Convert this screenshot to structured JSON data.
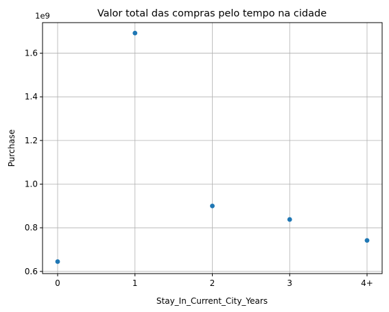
{
  "chart_data": {
    "type": "scatter",
    "title": "Valor total das compras pelo tempo na cidade",
    "xlabel": "Stay_In_Current_City_Years",
    "ylabel": "Purchase",
    "y_offset_label": "1e9",
    "categories": [
      "0",
      "1",
      "2",
      "3",
      "4+"
    ],
    "values": [
      0.645,
      1.692,
      0.9,
      0.838,
      0.742
    ],
    "yticks": [
      "0.6",
      "0.8",
      "1.0",
      "1.2",
      "1.4",
      "1.6"
    ],
    "ylim": [
      0.59,
      1.74
    ],
    "grid": true,
    "colors": {
      "point": "#1f77b4",
      "grid": "#b0b0b0",
      "axis": "#000000"
    }
  }
}
